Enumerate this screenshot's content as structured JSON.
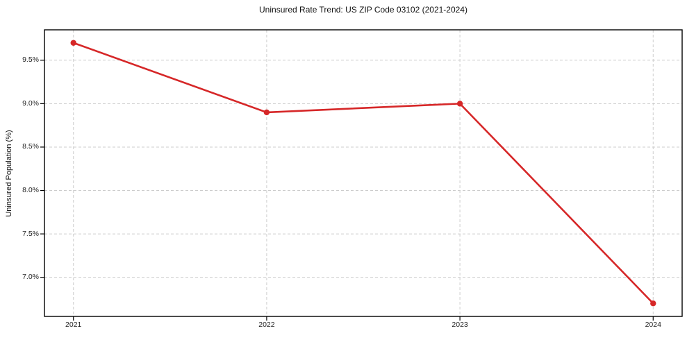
{
  "chart_data": {
    "type": "line",
    "title": "Uninsured Rate Trend: US ZIP Code 03102 (2021-2024)",
    "xlabel": "",
    "ylabel": "Uninsured Population (%)",
    "x": [
      2021,
      2022,
      2023,
      2024
    ],
    "values": [
      9.7,
      8.9,
      9.0,
      6.7
    ],
    "xticks": [
      2021,
      2022,
      2023,
      2024
    ],
    "xtick_labels": [
      "2021",
      "2022",
      "2023",
      "2024"
    ],
    "yticks": [
      7.0,
      7.5,
      8.0,
      8.5,
      9.0,
      9.5
    ],
    "ytick_labels": [
      "7.0%",
      "7.5%",
      "8.0%",
      "8.5%",
      "9.0%",
      "9.5%"
    ],
    "xlim": [
      2020.85,
      2024.15
    ],
    "ylim": [
      6.55,
      9.85
    ],
    "grid": true,
    "grid_style": "dashed",
    "legend_position": "none",
    "line_color": "#d62728",
    "marker": "circle",
    "grid_color": "#cccccc",
    "spine_color": "#000000",
    "tick_color": "#000000"
  }
}
